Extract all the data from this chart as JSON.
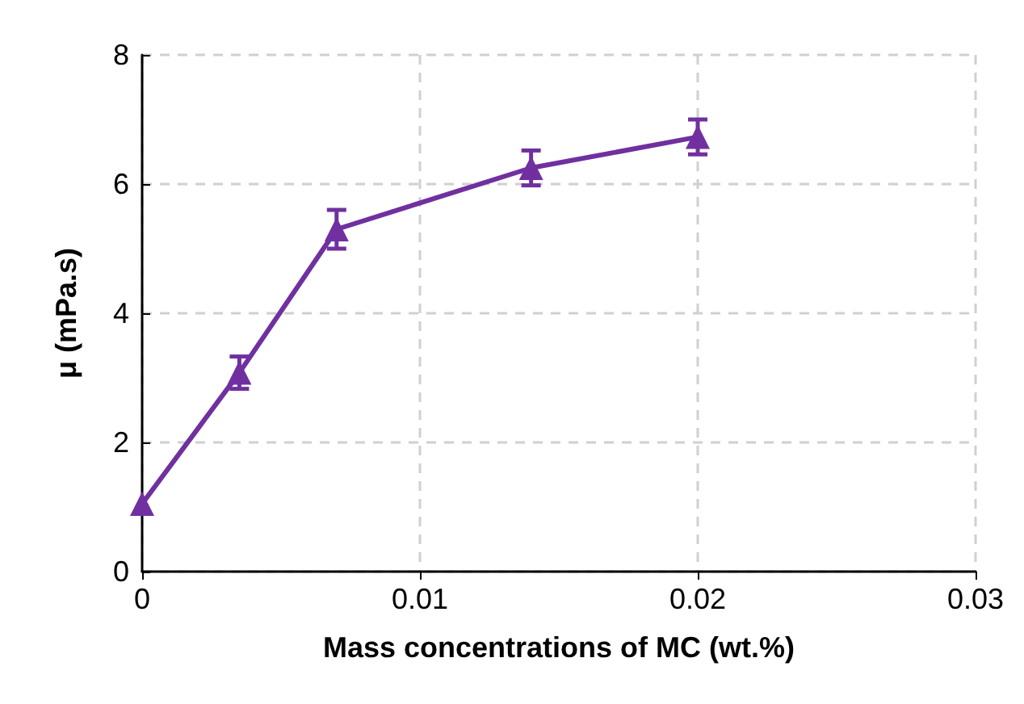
{
  "chart_data": {
    "type": "line",
    "xlabel": "Mass concentrations of MC (wt.%)",
    "ylabel": "μ (mPa.s)",
    "x": [
      0,
      0.0035,
      0.007,
      0.014,
      0.02
    ],
    "series": [
      {
        "color": "#7030a0",
        "values": [
          1.05,
          3.08,
          5.3,
          6.25,
          6.73
        ],
        "errors": [
          null,
          0.25,
          0.3,
          0.27,
          0.27
        ]
      }
    ],
    "xlim": [
      0,
      0.03
    ],
    "xticks": [
      0,
      0.01,
      0.02,
      0.03
    ],
    "ylim": [
      0,
      8
    ],
    "yticks": [
      0,
      2,
      4,
      6,
      8
    ],
    "grid": true,
    "marker": "triangle",
    "line_style": "solid"
  }
}
